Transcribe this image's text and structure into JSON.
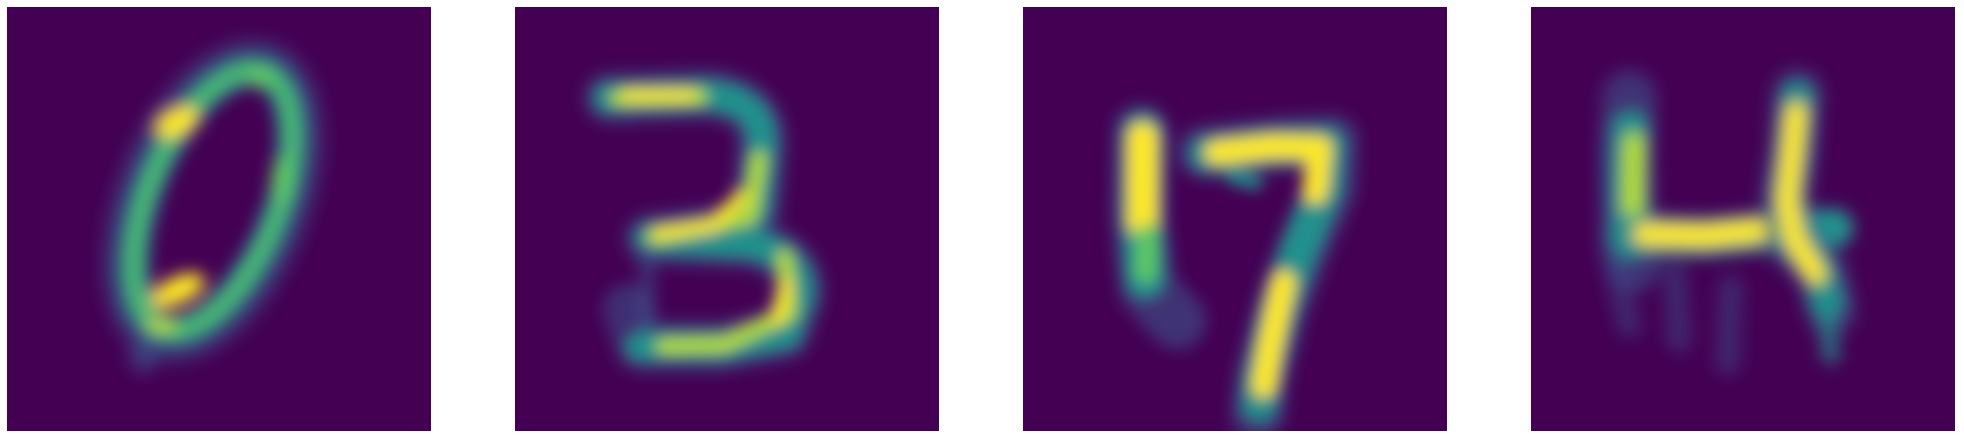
{
  "figure": {
    "kind": "grid of four reconstructed handwritten digit images",
    "colormap": [
      "#440154",
      "#3b528b",
      "#21918c",
      "#5ec962",
      "#b5de2b",
      "#fde725"
    ],
    "background_color": "#ffffff",
    "panels": [
      {
        "digit": "0"
      },
      {
        "digit": "3"
      },
      {
        "digit": "7"
      },
      {
        "digit": "4"
      }
    ]
  }
}
